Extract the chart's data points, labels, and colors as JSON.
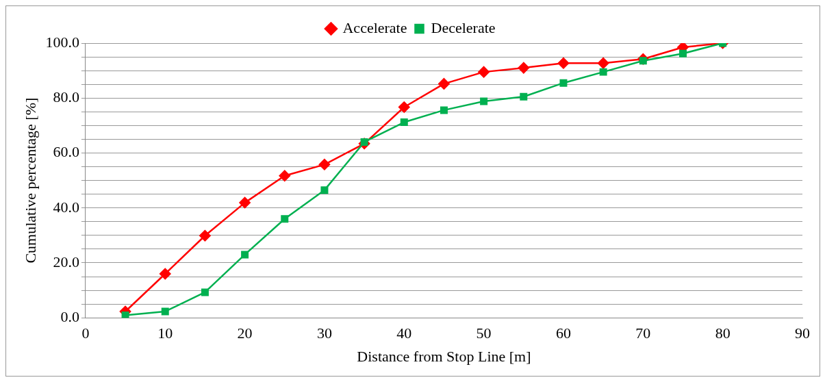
{
  "chart_data": {
    "type": "line",
    "xlabel": "Distance from Stop Line [m]",
    "ylabel": "Cumulative percentage [%]",
    "x": [
      5,
      10,
      15,
      20,
      25,
      30,
      35,
      40,
      45,
      50,
      55,
      60,
      65,
      70,
      75,
      80
    ],
    "series": [
      {
        "name": "Accelerate",
        "color": "#ff0000",
        "marker": "diamond",
        "values": [
          2.3,
          16.0,
          29.9,
          41.9,
          51.7,
          55.8,
          63.4,
          76.7,
          85.2,
          89.5,
          91.0,
          92.7,
          92.7,
          94.2,
          98.5,
          100.0
        ]
      },
      {
        "name": "Decelerate",
        "color": "#00b050",
        "marker": "square",
        "values": [
          0.9,
          2.3,
          9.3,
          23.0,
          36.0,
          46.5,
          64.0,
          71.2,
          75.6,
          78.8,
          80.5,
          85.5,
          89.5,
          93.6,
          96.2,
          100.0
        ]
      }
    ],
    "xlim": [
      0,
      90
    ],
    "xticks": [
      0,
      10,
      20,
      30,
      40,
      50,
      60,
      70,
      80,
      90
    ],
    "ylim": [
      0,
      100
    ],
    "yticks": [
      {
        "value": 0,
        "label": "0.0"
      },
      {
        "value": 5,
        "label": null
      },
      {
        "value": 10,
        "label": null
      },
      {
        "value": 15,
        "label": null
      },
      {
        "value": 20,
        "label": "20.0"
      },
      {
        "value": 25,
        "label": null
      },
      {
        "value": 30,
        "label": null
      },
      {
        "value": 35,
        "label": null
      },
      {
        "value": 40,
        "label": "40.0"
      },
      {
        "value": 45,
        "label": null
      },
      {
        "value": 50,
        "label": null
      },
      {
        "value": 55,
        "label": null
      },
      {
        "value": 60,
        "label": "60.0"
      },
      {
        "value": 65,
        "label": null
      },
      {
        "value": 70,
        "label": null
      },
      {
        "value": 75,
        "label": null
      },
      {
        "value": 80,
        "label": "80.0"
      },
      {
        "value": 85,
        "label": null
      },
      {
        "value": 90,
        "label": null
      },
      {
        "value": 95,
        "label": null
      },
      {
        "value": 100,
        "label": "100.0"
      }
    ],
    "grid": "y",
    "legend": "top",
    "line_style": "solid"
  }
}
